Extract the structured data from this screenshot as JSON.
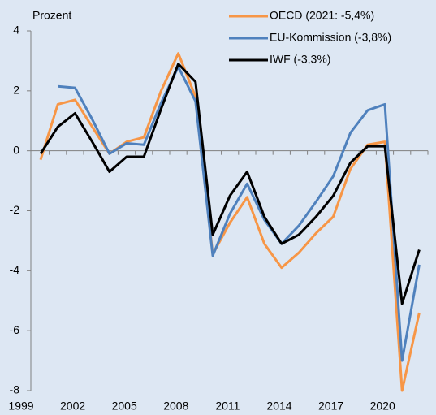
{
  "chart_data": {
    "type": "line",
    "y_label": "Prozent",
    "categories": [
      "1999",
      null,
      null,
      "2002",
      null,
      null,
      "2005",
      null,
      null,
      "2008",
      null,
      null,
      "2011",
      null,
      null,
      "2014",
      null,
      null,
      "2017",
      null,
      null,
      "2020",
      null
    ],
    "series": [
      {
        "name": "OECD (2021: -5,4%)",
        "color": "#f79646",
        "values": [
          -0.3,
          1.55,
          1.7,
          0.8,
          -0.1,
          0.3,
          0.45,
          2.0,
          3.25,
          1.8,
          -3.45,
          -2.4,
          -1.55,
          -3.1,
          -3.9,
          -3.4,
          -2.75,
          -2.2,
          -0.6,
          0.2,
          0.3,
          -8.0,
          -5.4
        ]
      },
      {
        "name": "EU-Kommission (-3,8%)",
        "color": "#4f81bd",
        "values": [
          null,
          2.15,
          2.1,
          1.05,
          -0.1,
          0.25,
          0.2,
          1.6,
          2.8,
          1.65,
          -3.5,
          -2.1,
          -1.1,
          -2.3,
          -3.1,
          -2.5,
          -1.7,
          -0.85,
          0.6,
          1.35,
          1.55,
          -7.0,
          -3.8
        ]
      },
      {
        "name": "IWF (-3,3%)",
        "color": "#000000",
        "values": [
          -0.1,
          0.8,
          1.25,
          0.3,
          -0.7,
          -0.2,
          -0.2,
          1.4,
          2.9,
          2.3,
          -2.8,
          -1.5,
          -0.7,
          -2.2,
          -3.1,
          -2.8,
          -2.2,
          -1.5,
          -0.4,
          0.15,
          0.15,
          -5.1,
          -3.3
        ]
      }
    ],
    "ylim": [
      -8,
      4
    ],
    "yticks": [
      -8,
      -6,
      -4,
      -2,
      0,
      2,
      4
    ]
  }
}
